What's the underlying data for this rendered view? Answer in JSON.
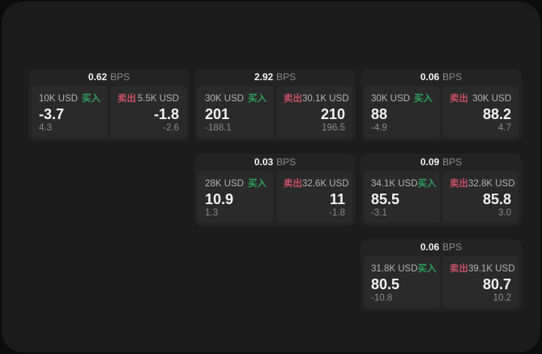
{
  "theme": {
    "page_bg": "#0c0c0c",
    "panel_bg": "#1c1c1c",
    "card_bg": "#232323",
    "tile_bg": "#2a2a2a",
    "text_primary": "#f2f2f2",
    "text_secondary": "#b3b3b3",
    "text_muted": "#8a8a8a",
    "buy_color": "#2e9e5b",
    "sell_color": "#c14f62"
  },
  "labels": {
    "bps_unit": "BPS",
    "buy": "买入",
    "sell": "卖出"
  },
  "cards": [
    {
      "row": 1,
      "col": 1,
      "spread": "0.62",
      "buy": {
        "amount": "10K USD",
        "price": "-3.7",
        "sub": "4.3"
      },
      "sell": {
        "amount": "5.5K USD",
        "price": "-1.8",
        "sub": "-2.6"
      }
    },
    {
      "row": 1,
      "col": 2,
      "spread": "2.92",
      "buy": {
        "amount": "30K USD",
        "price": "201",
        "sub": "-188.1"
      },
      "sell": {
        "amount": "30.1K USD",
        "price": "210",
        "sub": "196.5"
      }
    },
    {
      "row": 1,
      "col": 3,
      "spread": "0.06",
      "buy": {
        "amount": "30K USD",
        "price": "88",
        "sub": "-4.9"
      },
      "sell": {
        "amount": "30K USD",
        "price": "88.2",
        "sub": "4.7"
      }
    },
    {
      "row": 2,
      "col": 2,
      "spread": "0.03",
      "buy": {
        "amount": "28K USD",
        "price": "10.9",
        "sub": "1.3"
      },
      "sell": {
        "amount": "32.6K USD",
        "price": "11",
        "sub": "-1.8"
      }
    },
    {
      "row": 2,
      "col": 3,
      "spread": "0.09",
      "buy": {
        "amount": "34.1K USD",
        "price": "85.5",
        "sub": "-3.1"
      },
      "sell": {
        "amount": "32.8K USD",
        "price": "85.8",
        "sub": "3.0"
      }
    },
    {
      "row": 3,
      "col": 3,
      "spread": "0.06",
      "buy": {
        "amount": "31.8K USD",
        "price": "80.5",
        "sub": "-10.8"
      },
      "sell": {
        "amount": "39.1K USD",
        "price": "80.7",
        "sub": "10.2"
      }
    }
  ]
}
